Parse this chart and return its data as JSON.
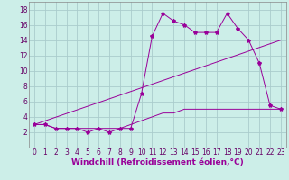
{
  "background_color": "#cceee8",
  "grid_color": "#aacccc",
  "line_color": "#990099",
  "xlabel": "Windchill (Refroidissement éolien,°C)",
  "xlim": [
    -0.5,
    23.5
  ],
  "ylim": [
    0,
    19
  ],
  "xticks": [
    0,
    1,
    2,
    3,
    4,
    5,
    6,
    7,
    8,
    9,
    10,
    11,
    12,
    13,
    14,
    15,
    16,
    17,
    18,
    19,
    20,
    21,
    22,
    23
  ],
  "yticks": [
    2,
    4,
    6,
    8,
    10,
    12,
    14,
    16,
    18
  ],
  "series1_x": [
    0,
    1,
    2,
    3,
    4,
    5,
    6,
    7,
    8,
    9,
    10,
    11,
    12,
    13,
    14,
    15,
    16,
    17,
    18,
    19,
    20,
    21,
    22,
    23
  ],
  "series1_y": [
    3,
    3,
    2.5,
    2.5,
    2.5,
    2,
    2.5,
    2,
    2.5,
    2.5,
    7,
    14.5,
    17.5,
    16.5,
    16,
    15,
    15,
    15,
    17.5,
    15.5,
    14,
    11,
    5.5,
    5
  ],
  "series2_x": [
    0,
    1,
    2,
    3,
    4,
    5,
    6,
    7,
    8,
    9,
    10,
    11,
    12,
    13,
    14,
    15,
    16,
    17,
    18,
    19,
    20,
    21,
    22,
    23
  ],
  "series2_y": [
    3,
    3,
    2.5,
    2.5,
    2.5,
    2.5,
    2.5,
    2.5,
    2.5,
    3,
    3.5,
    4,
    4.5,
    4.5,
    5,
    5,
    5,
    5,
    5,
    5,
    5,
    5,
    5,
    5
  ],
  "series3_x": [
    0,
    23
  ],
  "series3_y": [
    3,
    14
  ],
  "tick_fontsize": 5.5,
  "xlabel_fontsize": 6.5
}
